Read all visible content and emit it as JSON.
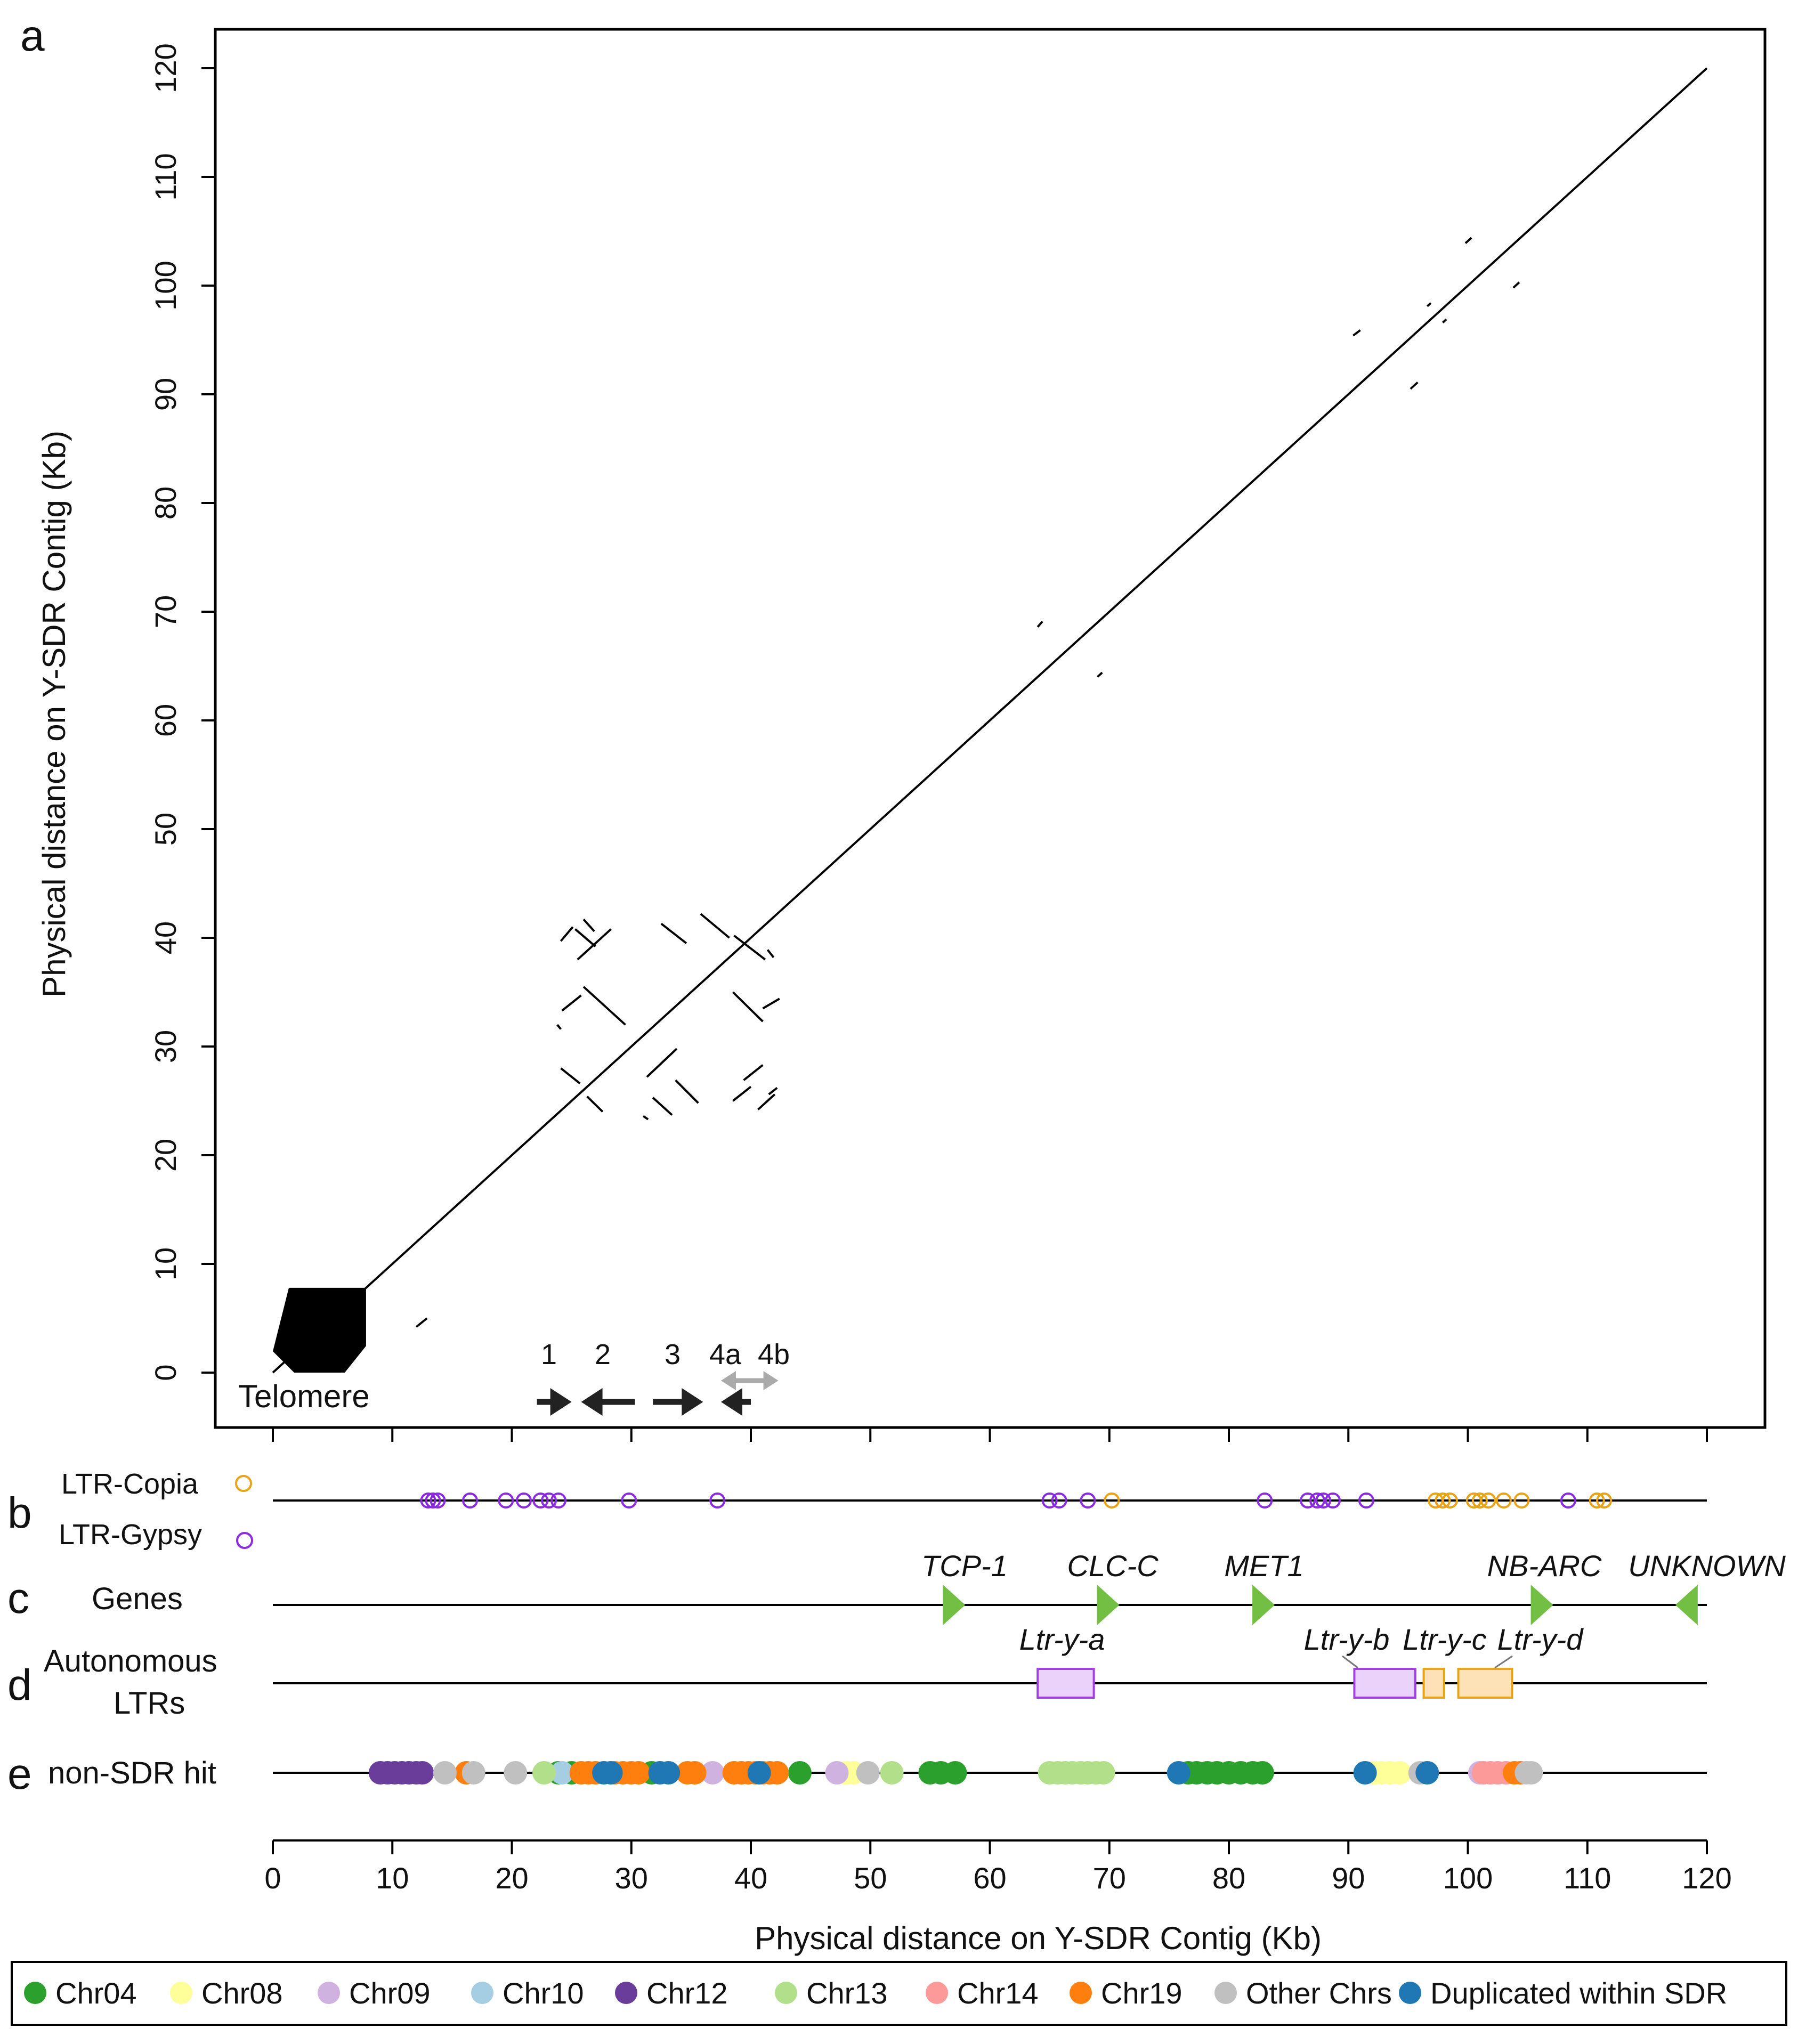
{
  "panel_letters": {
    "a": "a",
    "b": "b",
    "c": "c",
    "d": "d",
    "e": "e"
  },
  "chart_data": [
    {
      "type": "scatter",
      "panel": "a",
      "title": "",
      "xlabel": "Physical distance on Y-SDR Contig (Kb)",
      "ylabel": "Physical distance on Y-SDR Contig (Kb)",
      "xlim": [
        0,
        120
      ],
      "ylim": [
        0,
        120
      ],
      "xticks": [
        0,
        10,
        20,
        30,
        40,
        50,
        60,
        70,
        80,
        90,
        100,
        110,
        120
      ],
      "yticks": [
        0,
        10,
        20,
        30,
        40,
        50,
        60,
        70,
        80,
        90,
        100,
        110,
        120
      ],
      "diagonal": [
        [
          0,
          0
        ],
        [
          120,
          120
        ]
      ],
      "telomere_label": "Telomere",
      "telomere_block": {
        "x_range": [
          0,
          7.8
        ],
        "y_range": [
          0,
          7.8
        ]
      },
      "segments": [
        [
          [
            24.1,
            39.7
          ],
          [
            25.1,
            41.0
          ]
        ],
        [
          [
            25.3,
            40.8
          ],
          [
            27.0,
            39.2
          ]
        ],
        [
          [
            26.0,
            41.7
          ],
          [
            26.9,
            40.6
          ]
        ],
        [
          [
            25.5,
            38.0
          ],
          [
            28.3,
            40.8
          ]
        ],
        [
          [
            32.5,
            41.3
          ],
          [
            34.6,
            39.5
          ]
        ],
        [
          [
            35.8,
            42.2
          ],
          [
            38.2,
            40.0
          ]
        ],
        [
          [
            38.6,
            40.2
          ],
          [
            41.2,
            38.0
          ]
        ],
        [
          [
            41.4,
            38.9
          ],
          [
            41.9,
            38.2
          ]
        ],
        [
          [
            24.2,
            33.3
          ],
          [
            25.8,
            34.7
          ]
        ],
        [
          [
            26.0,
            35.5
          ],
          [
            29.5,
            32.0
          ]
        ],
        [
          [
            23.8,
            32.0
          ],
          [
            24.1,
            31.6
          ]
        ],
        [
          [
            38.5,
            35.0
          ],
          [
            41.0,
            32.3
          ]
        ],
        [
          [
            41.0,
            33.5
          ],
          [
            42.4,
            34.4
          ]
        ],
        [
          [
            24.1,
            28.0
          ],
          [
            25.7,
            26.6
          ]
        ],
        [
          [
            26.3,
            25.4
          ],
          [
            27.6,
            24.0
          ]
        ],
        [
          [
            31.3,
            27.2
          ],
          [
            33.8,
            29.8
          ]
        ],
        [
          [
            33.7,
            26.9
          ],
          [
            35.6,
            24.8
          ]
        ],
        [
          [
            31.8,
            25.3
          ],
          [
            33.4,
            23.7
          ]
        ],
        [
          [
            31.0,
            23.6
          ],
          [
            31.4,
            23.3
          ]
        ],
        [
          [
            39.4,
            26.9
          ],
          [
            41.0,
            28.3
          ]
        ],
        [
          [
            38.5,
            25.0
          ],
          [
            40.0,
            26.3
          ]
        ],
        [
          [
            40.6,
            24.2
          ],
          [
            42.0,
            25.6
          ]
        ],
        [
          [
            41.5,
            25.6
          ],
          [
            42.2,
            26.2
          ]
        ],
        [
          [
            12.0,
            4.2
          ],
          [
            12.9,
            5.0
          ]
        ],
        [
          [
            64.0,
            68.6
          ],
          [
            64.4,
            69.1
          ]
        ],
        [
          [
            69.0,
            64.0
          ],
          [
            69.4,
            64.4
          ]
        ],
        [
          [
            90.4,
            95.4
          ],
          [
            91.0,
            95.9
          ]
        ],
        [
          [
            95.2,
            90.5
          ],
          [
            95.8,
            91.1
          ]
        ],
        [
          [
            96.6,
            98.1
          ],
          [
            96.9,
            98.4
          ]
        ],
        [
          [
            97.9,
            96.6
          ],
          [
            98.2,
            96.9
          ]
        ],
        [
          [
            99.8,
            103.9
          ],
          [
            100.3,
            104.4
          ]
        ],
        [
          [
            103.8,
            99.8
          ],
          [
            104.3,
            100.3
          ]
        ]
      ],
      "repeats": [
        {
          "label": "1",
          "x_from": 22.1,
          "x_to": 25.0,
          "color": "#222222"
        },
        {
          "label": "2",
          "x_from": 30.3,
          "x_to": 25.8,
          "color": "#222222"
        },
        {
          "label": "3",
          "x_from": 31.8,
          "x_to": 36.0,
          "color": "#222222"
        },
        {
          "label": "4a",
          "x_from": 40.0,
          "x_to": 37.5,
          "color": "#222222"
        },
        {
          "label": "4b",
          "x_from": 37.5,
          "x_to": 42.3,
          "color": "#aaaaaa"
        }
      ]
    },
    {
      "type": "scatter",
      "panel": "b",
      "track_label": "",
      "series": [
        {
          "name": "LTR-Gypsy",
          "color": "#8a2be2",
          "marker": "open-circle",
          "x": [
            13.0,
            13.4,
            13.8,
            16.5,
            19.5,
            21.0,
            22.4,
            23.1,
            23.9,
            29.8,
            37.2,
            65.0,
            65.8,
            68.2,
            83.0,
            86.6,
            87.4,
            87.9,
            88.7,
            91.5,
            108.4
          ]
        },
        {
          "name": "LTR-Copia",
          "color": "#e8a317",
          "marker": "open-circle",
          "x": [
            70.2,
            97.3,
            97.9,
            98.5,
            100.5,
            101.0,
            101.7,
            103.0,
            104.5,
            110.8,
            111.4
          ]
        }
      ]
    },
    {
      "type": "scatter",
      "panel": "c",
      "track_label": "Genes",
      "genes": [
        {
          "name": "TCP-1",
          "x": 56.6,
          "strand": "+"
        },
        {
          "name": "CLC-C",
          "x": 69.5,
          "strand": "+"
        },
        {
          "name": "MET1",
          "x": 82.5,
          "strand": "+"
        },
        {
          "name": "NB-ARC",
          "x": 105.8,
          "strand": "+"
        },
        {
          "name": "UNKNOWN",
          "x": 118.7,
          "strand": "-"
        }
      ],
      "color": "#72bf44"
    },
    {
      "type": "scatter",
      "panel": "d",
      "track_label_line1": "Autonomous",
      "track_label_line2": "LTRs",
      "elements": [
        {
          "name": "Ltr-y-a",
          "start": 64.0,
          "end": 68.7,
          "family": "Gypsy"
        },
        {
          "name": "Ltr-y-b",
          "start": 90.5,
          "end": 95.6,
          "family": "Gypsy"
        },
        {
          "name": "Ltr-y-c",
          "start": 96.3,
          "end": 98.0,
          "family": "Copia"
        },
        {
          "name": "Ltr-y-d",
          "start": 99.2,
          "end": 103.7,
          "family": "Copia"
        }
      ]
    },
    {
      "type": "scatter",
      "panel": "e",
      "track_label": "non-SDR hit",
      "xlim": [
        0,
        120
      ],
      "xticks": [
        0,
        10,
        20,
        30,
        40,
        50,
        60,
        70,
        80,
        90,
        100,
        110,
        120
      ],
      "xlabel": "Physical distance on Y-SDR Contig (Kb)",
      "series": [
        {
          "name": "Chr04",
          "color": "#2ca02c",
          "x": [
            23.9,
            25.0,
            31.7,
            44.1,
            55.0,
            55.9,
            57.1,
            76.6,
            77.3,
            78.2,
            79.0,
            80.0,
            81.0,
            82.0,
            82.8
          ]
        },
        {
          "name": "Chr08",
          "color": "#ffff99",
          "x": [
            48.0,
            48.6,
            92.2,
            92.8,
            93.5,
            94.3
          ]
        },
        {
          "name": "Chr09",
          "color": "#cfb2e0",
          "x": [
            36.8,
            47.2,
            101.0
          ]
        },
        {
          "name": "Chr10",
          "color": "#a6cee3",
          "x": [
            24.2
          ]
        },
        {
          "name": "Chr12",
          "color": "#6a3d9a",
          "x": [
            9.0,
            9.6,
            10.2,
            10.8,
            11.4,
            12.0,
            12.5
          ]
        },
        {
          "name": "Chr13",
          "color": "#b2df8a",
          "x": [
            22.7,
            51.8,
            65.0,
            65.7,
            66.3,
            66.9,
            67.6,
            68.2,
            68.9,
            69.5
          ]
        },
        {
          "name": "Chr14",
          "color": "#fb9a99",
          "x": [
            101.3,
            101.9,
            102.5,
            103.2
          ]
        },
        {
          "name": "Chr19",
          "color": "#ff7f0e",
          "x": [
            16.2,
            25.8,
            26.4,
            27.0,
            28.6,
            29.3,
            30.0,
            30.6,
            34.7,
            35.3,
            38.6,
            39.2,
            39.8,
            40.4,
            41.0,
            41.6,
            42.2,
            103.9,
            104.4
          ]
        },
        {
          "name": "Other Chrs",
          "color": "#c0c0c0",
          "x": [
            14.4,
            16.8,
            20.3,
            49.8,
            96.0,
            104.9,
            105.3
          ]
        },
        {
          "name": "Duplicated within SDR",
          "color": "#1f78b4",
          "x": [
            27.7,
            28.3,
            32.4,
            33.1,
            40.7,
            75.8,
            91.4,
            96.6
          ]
        }
      ]
    }
  ],
  "legend": [
    {
      "label": "Chr04",
      "color": "#2ca02c"
    },
    {
      "label": "Chr08",
      "color": "#ffff99"
    },
    {
      "label": "Chr09",
      "color": "#cfb2e0"
    },
    {
      "label": "Chr10",
      "color": "#a6cee3"
    },
    {
      "label": "Chr12",
      "color": "#6a3d9a"
    },
    {
      "label": "Chr13",
      "color": "#b2df8a"
    },
    {
      "label": "Chr14",
      "color": "#fb9a99"
    },
    {
      "label": "Chr19",
      "color": "#ff7f0e"
    },
    {
      "label": "Other Chrs",
      "color": "#c0c0c0"
    },
    {
      "label": "Duplicated within SDR",
      "color": "#1f78b4"
    }
  ],
  "colors": {
    "gypsy_fill": "#ead2fa",
    "gypsy_stroke": "#a23fe0",
    "copia_fill": "#fde2b8",
    "copia_stroke": "#e8a317"
  }
}
